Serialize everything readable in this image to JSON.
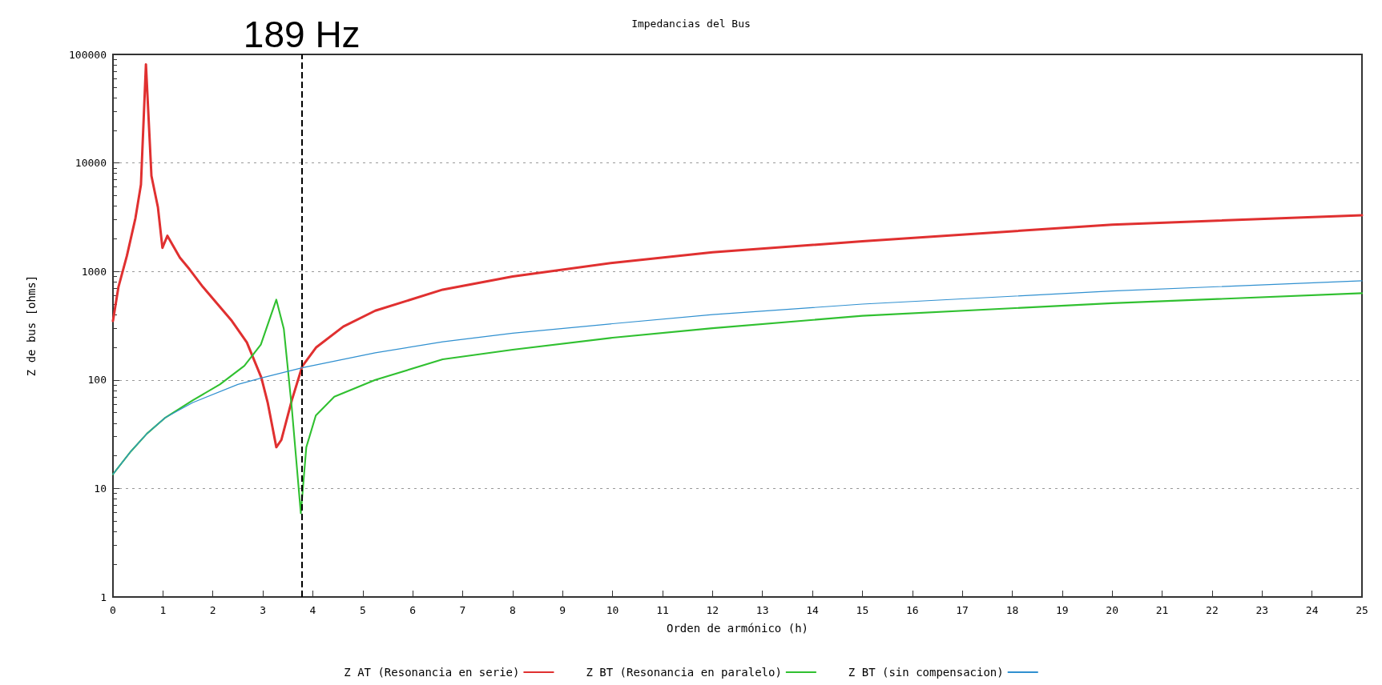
{
  "chart_data": {
    "type": "line",
    "title": "Impedancias del Bus",
    "xlabel": "Orden de armónico (h)",
    "ylabel": "Z de bus [ohms]",
    "log": "y",
    "grid": "y",
    "legend": "bottom",
    "marker": "none",
    "line_style": "solid",
    "xlim": [
      0,
      25
    ],
    "xticks": [
      0,
      1,
      2,
      3,
      4,
      5,
      6,
      7,
      8,
      9,
      10,
      11,
      12,
      13,
      14,
      15,
      16,
      17,
      18,
      19,
      20,
      21,
      22,
      23,
      24,
      25
    ],
    "ylim": [
      1,
      100000
    ],
    "yticks": [
      1,
      10,
      100,
      1000,
      10000,
      100000
    ],
    "ref_lines": [
      {
        "axis": "x",
        "value": 3.78,
        "label": "189 Hz",
        "color": "#000000",
        "line_style": "dashed"
      }
    ],
    "series": [
      {
        "name": "Z AT (Resonancia en serie)",
        "color": "#e03030",
        "x": [
          0,
          0.11,
          0.28,
          0.45,
          0.56,
          0.66,
          0.77,
          0.9,
          0.99,
          1.09,
          1.34,
          1.53,
          1.8,
          2.38,
          2.68,
          2.97,
          3.1,
          3.27,
          3.37,
          3.58,
          3.79,
          4.07,
          4.61,
          5.25,
          6.6,
          8,
          10,
          12,
          15,
          20,
          25
        ],
        "values": [
          350,
          720,
          1400,
          3100,
          6300,
          81000,
          7600,
          3900,
          1650,
          2130,
          1340,
          1050,
          720,
          350,
          222,
          105,
          61,
          24,
          28,
          65,
          134,
          200,
          310,
          435,
          680,
          900,
          1200,
          1500,
          1900,
          2700,
          3300
        ]
      },
      {
        "name": "Z BT (Resonancia en paralelo)",
        "color": "#30c030",
        "x": [
          0,
          0.36,
          0.68,
          1.05,
          1.6,
          2.14,
          2.63,
          2.96,
          3.27,
          3.42,
          3.58,
          3.76,
          3.87,
          4.06,
          4.43,
          5.25,
          6.6,
          8,
          10,
          12,
          15,
          20,
          25
        ],
        "values": [
          13.5,
          22,
          32,
          45,
          65,
          91,
          135,
          212,
          550,
          295,
          55,
          5.9,
          24,
          47,
          70,
          100,
          155,
          190,
          245,
          300,
          390,
          510,
          630
        ]
      },
      {
        "name": "Z BT (sin compensacion)",
        "color": "#3090d0",
        "x": [
          0,
          0.36,
          0.68,
          1.05,
          1.6,
          2.5,
          3,
          3.8,
          5.25,
          6.6,
          8,
          10,
          12,
          15,
          20,
          25
        ],
        "values": [
          13.5,
          22,
          32,
          45,
          62,
          91,
          105,
          130,
          178,
          225,
          270,
          330,
          400,
          500,
          660,
          820
        ]
      }
    ]
  }
}
